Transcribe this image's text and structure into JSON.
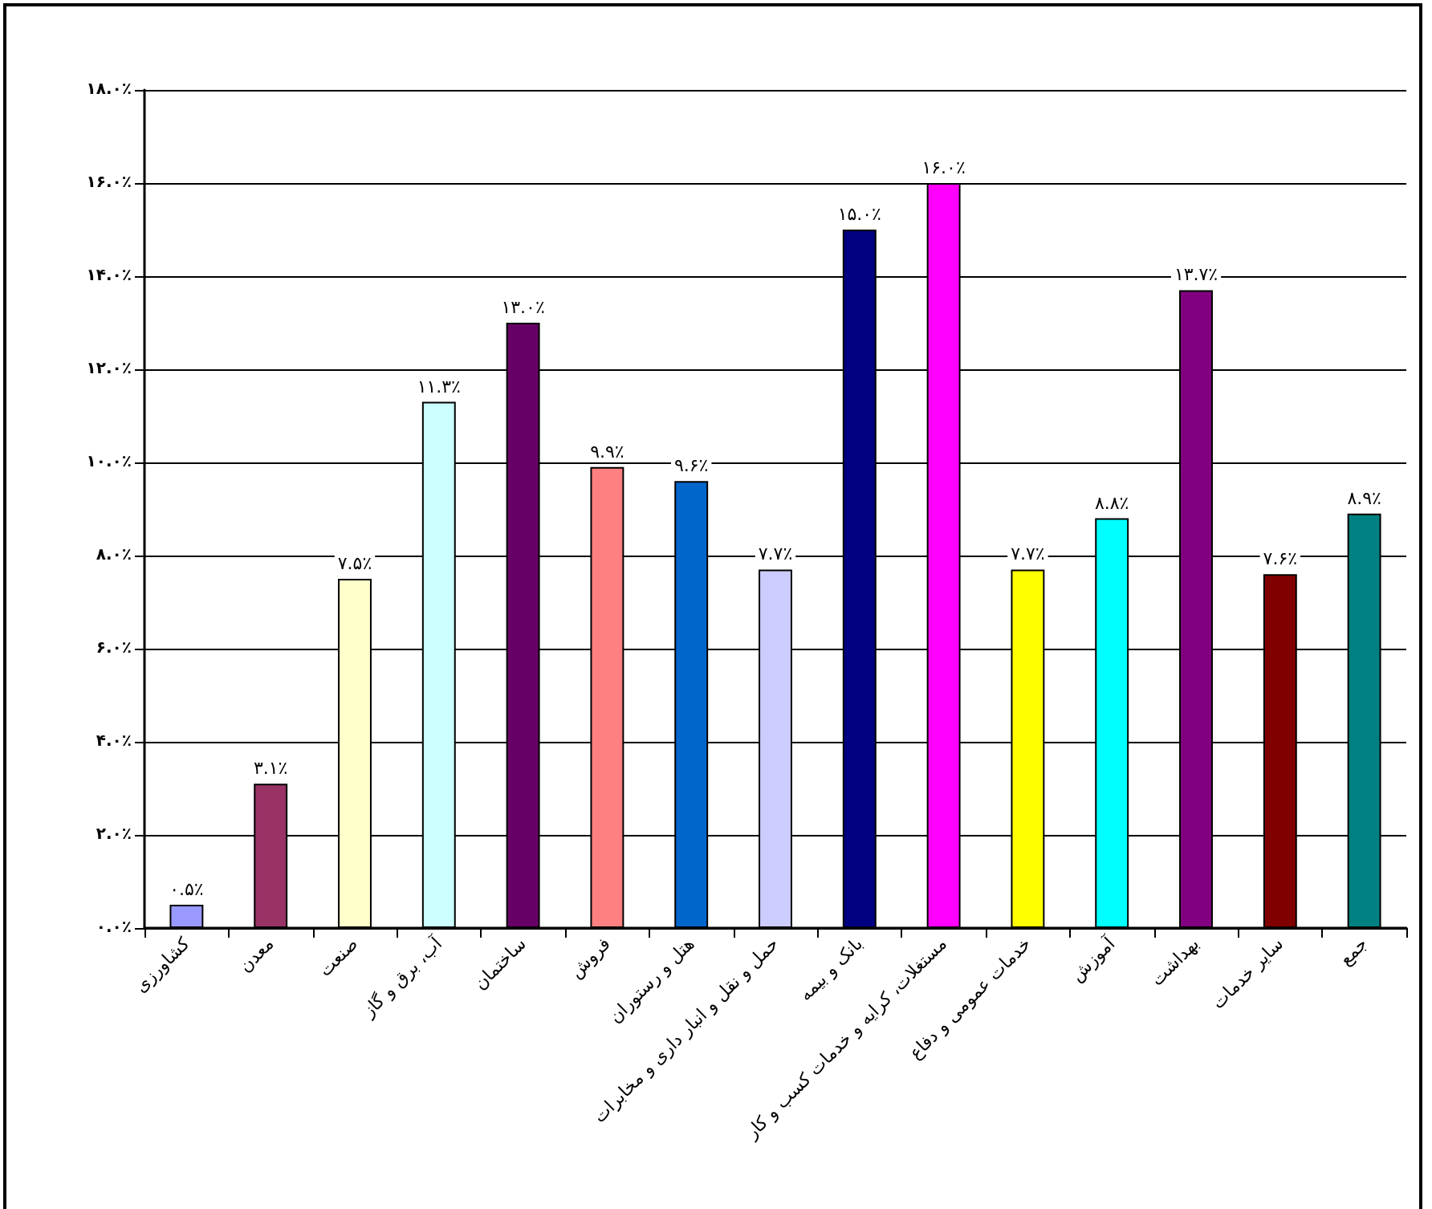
{
  "chart_data": {
    "type": "bar",
    "categories": [
      "کشاورزی",
      "معدن",
      "صنعت",
      "آب، برق و گاز",
      "ساختمان",
      "فروش",
      "هتل و رستوران",
      "حمل و نقل و انبار داری و مخابرات",
      "بانک و بیمه",
      "مستغلات، کرایه و خدمات کسب و کار",
      "خدمات عمومی و دفاع",
      "آموزش",
      "بهداشت",
      "سایر خدمات",
      "جمع"
    ],
    "values": [
      0.5,
      3.1,
      7.5,
      11.3,
      13.0,
      9.9,
      9.6,
      7.7,
      15.0,
      16.0,
      7.7,
      8.8,
      13.7,
      7.6,
      8.9
    ],
    "colors": [
      "#9999ff",
      "#993366",
      "#ffffcc",
      "#ccffff",
      "#660066",
      "#ff8080",
      "#0066cc",
      "#ccccff",
      "#000080",
      "#ff00ff",
      "#ffff00",
      "#00ffff",
      "#800080",
      "#800000",
      "#008080"
    ],
    "value_labels": [
      "۰.۵٪",
      "۳.۱٪",
      "۷.۵٪",
      "۱۱.۳٪",
      "۱۳.۰٪",
      "۹.۹٪",
      "۹.۶٪",
      "۷.۷٪",
      "۱۵.۰٪",
      "۱۶.۰٪",
      "۷.۷٪",
      "۸.۸٪",
      "۱۳.۷٪",
      "۷.۶٪",
      "۸.۹٪"
    ],
    "ylim": [
      0,
      18
    ],
    "yticks": [
      {
        "value": 0,
        "label": "۰.۰٪"
      },
      {
        "value": 2,
        "label": "۲.۰٪"
      },
      {
        "value": 4,
        "label": "۴.۰٪"
      },
      {
        "value": 6,
        "label": "۶.۰٪"
      },
      {
        "value": 8,
        "label": "۸.۰٪"
      },
      {
        "value": 10,
        "label": "۱۰.۰٪"
      },
      {
        "value": 12,
        "label": "۱۲.۰٪"
      },
      {
        "value": 14,
        "label": "۱۴.۰٪"
      },
      {
        "value": 16,
        "label": "۱۶.۰٪"
      },
      {
        "value": 18,
        "label": "۱۸.۰٪"
      }
    ],
    "grid": "y"
  }
}
